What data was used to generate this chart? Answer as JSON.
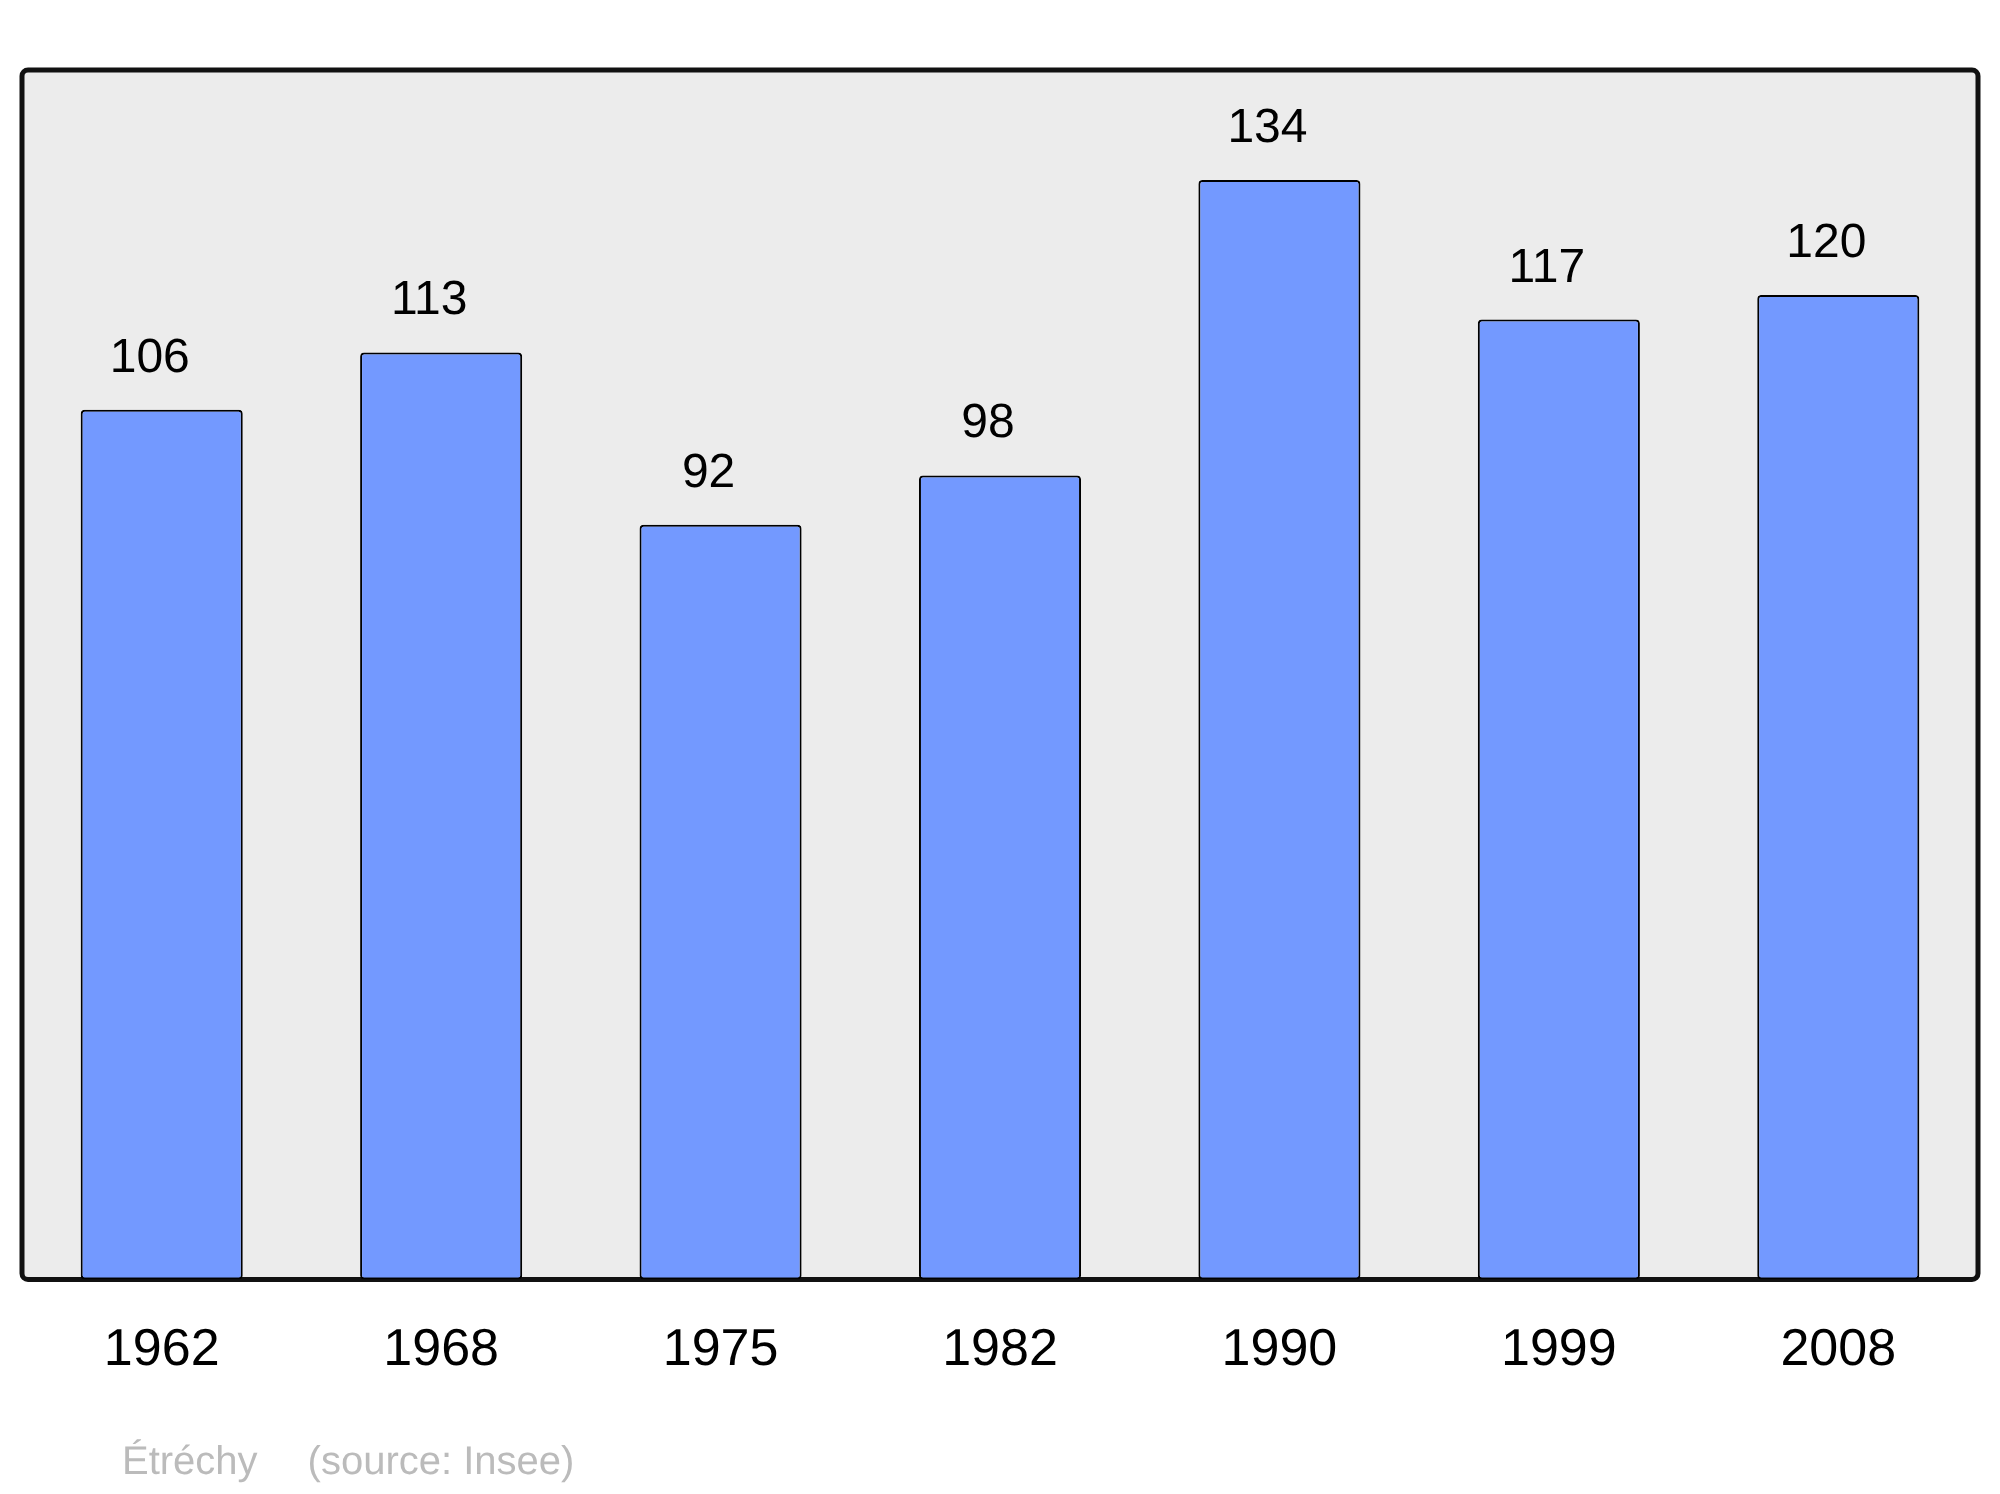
{
  "chart_data": {
    "type": "bar",
    "categories": [
      "1962",
      "1968",
      "1975",
      "1982",
      "1990",
      "1999",
      "2008"
    ],
    "values": [
      106,
      113,
      92,
      98,
      134,
      117,
      120
    ],
    "color": "#7399ff",
    "data_labels": true,
    "annotations": [
      "Étréchy",
      "(source: Insee)"
    ]
  }
}
